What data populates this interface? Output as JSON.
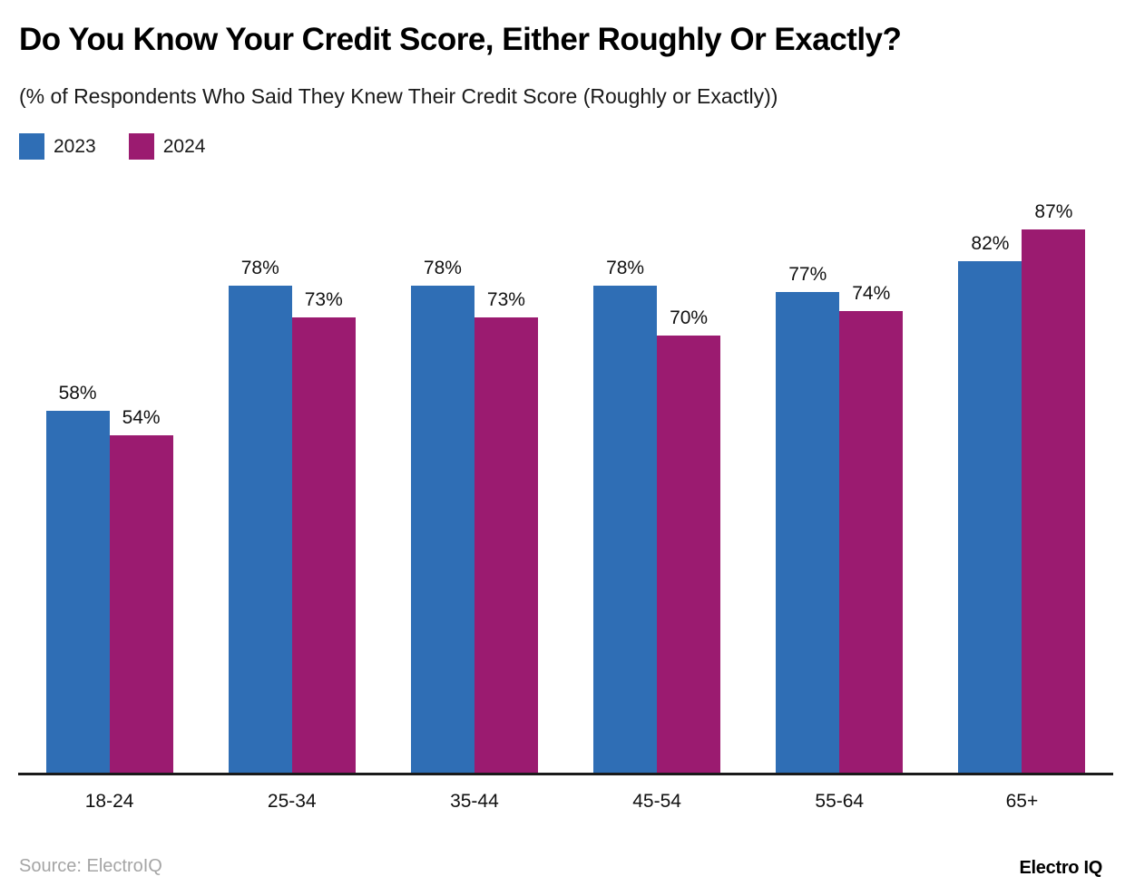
{
  "chart_data": {
    "type": "bar",
    "title": "Do You Know Your Credit Score, Either Roughly Or Exactly?",
    "subtitle": "(% of Respondents Who Said They Knew Their Credit Score (Roughly or Exactly))",
    "categories": [
      "18-24",
      "25-34",
      "35-44",
      "45-54",
      "55-64",
      "65+"
    ],
    "series": [
      {
        "name": "2023",
        "color": "#2F6EB5",
        "values": [
          58,
          78,
          78,
          78,
          77,
          82
        ]
      },
      {
        "name": "2024",
        "color": "#9B1B70",
        "values": [
          54,
          73,
          73,
          70,
          74,
          87
        ]
      }
    ],
    "value_suffix": "%",
    "ylim": [
      0,
      100
    ],
    "grid": false,
    "legend_position": "top-left",
    "xlabel": "",
    "ylabel": ""
  },
  "footer": {
    "source": "Source: ElectroIQ",
    "brand": "Electro IQ"
  }
}
